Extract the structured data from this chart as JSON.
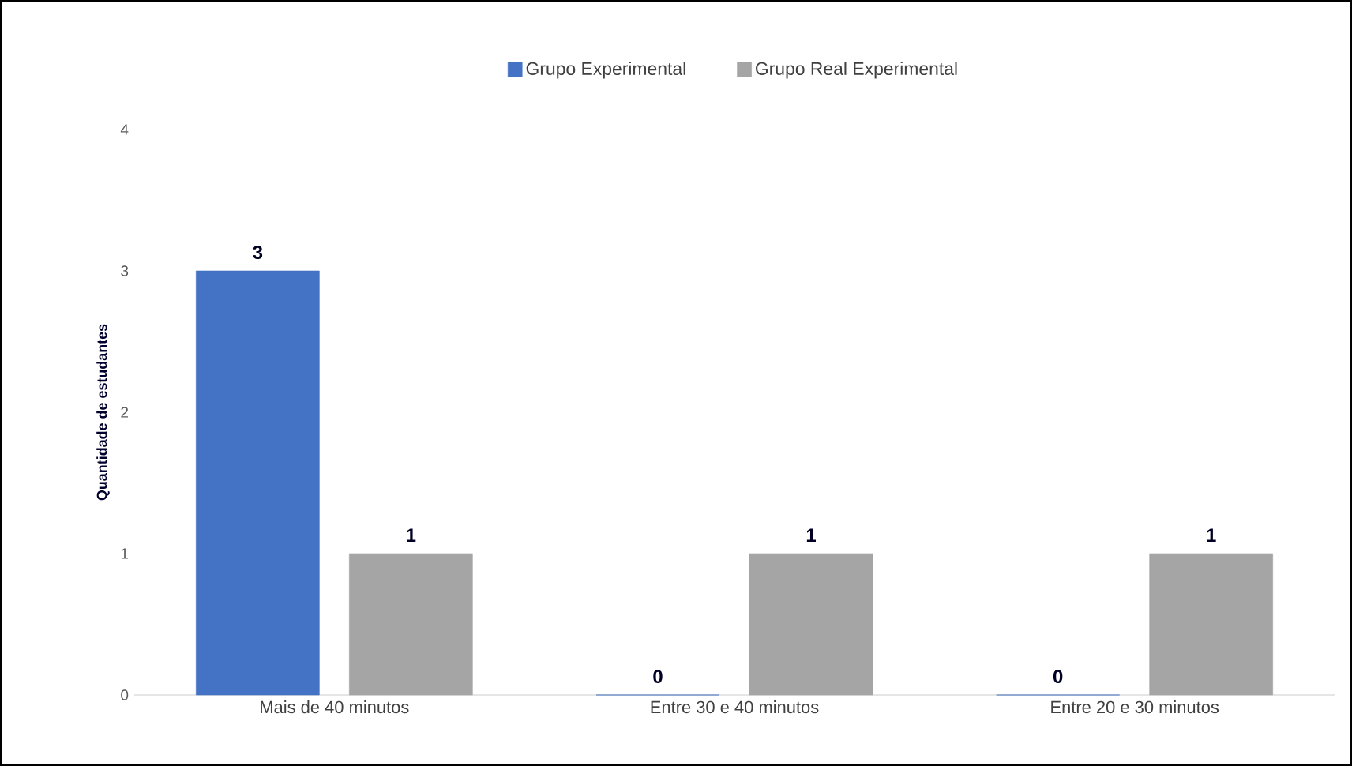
{
  "chart_data": {
    "type": "bar",
    "ylabel": "Quantidade de estudantes",
    "categories": [
      "Mais de 40 minutos",
      "Entre 30 e 40 minutos",
      "Entre 20 e 30 minutos"
    ],
    "series": [
      {
        "name": "Grupo Experimental",
        "color": "#4472c4",
        "values": [
          3,
          0,
          0
        ]
      },
      {
        "name": "Grupo Real Experimental",
        "color": "#a5a5a5",
        "values": [
          1,
          1,
          1
        ]
      }
    ],
    "ylim": [
      0,
      4
    ],
    "yticks": [
      0,
      1,
      2,
      3,
      4
    ],
    "grid": false,
    "legend": "top",
    "data_labels": true
  }
}
